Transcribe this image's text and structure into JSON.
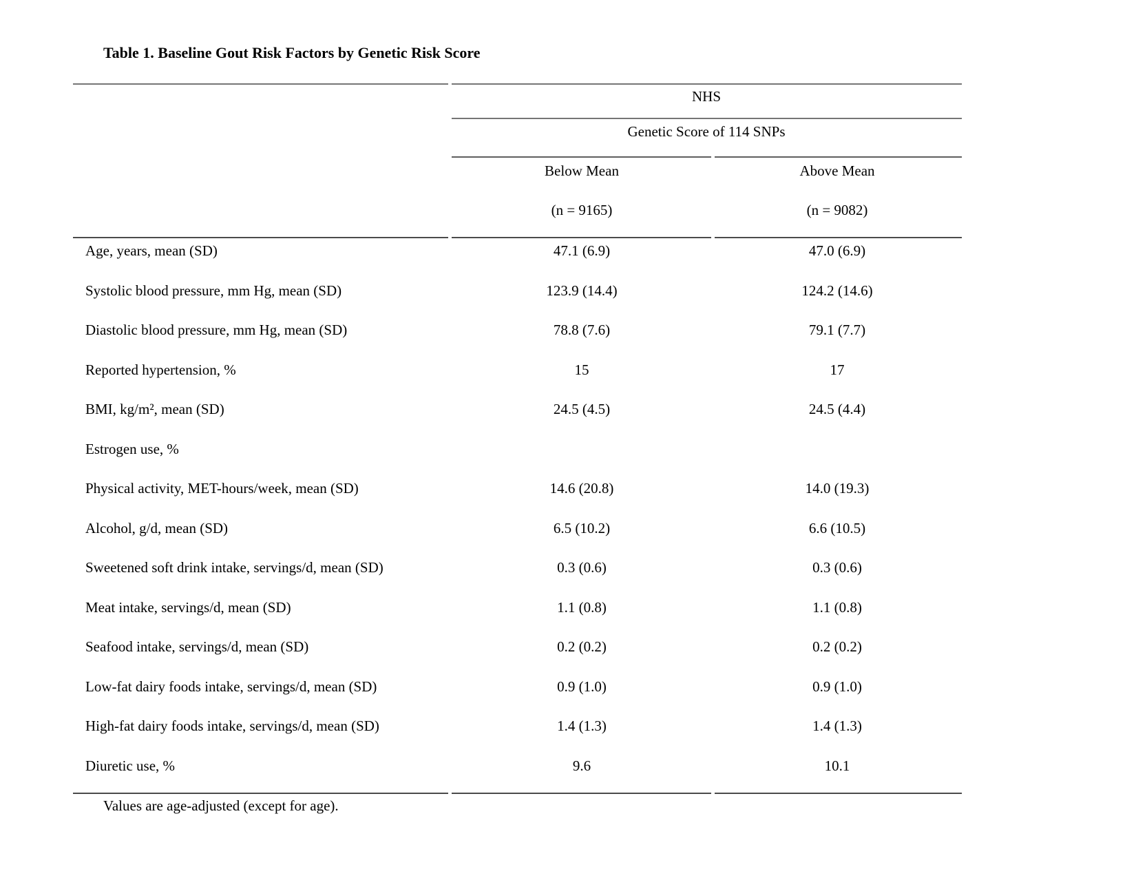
{
  "title": "Table 1. Baseline Gout Risk Factors by Genetic Risk Score",
  "table": {
    "group_header": "NHS",
    "subgroup_header": "Genetic Score of 114 SNPs",
    "columns": [
      {
        "label": "Below Mean",
        "n": "(n = 9165)"
      },
      {
        "label": "Above Mean",
        "n": "(n = 9082)"
      }
    ],
    "rows": [
      {
        "label": "Age, years, mean (SD)",
        "below_mean": "47.1 (6.9)",
        "above_mean": "47.0 (6.9)"
      },
      {
        "label": "Systolic blood pressure, mm Hg, mean (SD)",
        "below_mean": "123.9 (14.4)",
        "above_mean": "124.2 (14.6)"
      },
      {
        "label": "Diastolic blood pressure, mm Hg, mean (SD)",
        "below_mean": "78.8 (7.6)",
        "above_mean": "79.1 (7.7)"
      },
      {
        "label": "Reported hypertension, %",
        "below_mean": "15",
        "above_mean": "17"
      },
      {
        "label": "BMI, kg/m², mean (SD)",
        "below_mean": "24.5 (4.5)",
        "above_mean": "24.5 (4.4)"
      },
      {
        "label": "Estrogen use, %",
        "below_mean": "",
        "above_mean": ""
      },
      {
        "label": "Physical activity, MET-hours/week, mean (SD)",
        "below_mean": "14.6 (20.8)",
        "above_mean": "14.0 (19.3)"
      },
      {
        "label": "Alcohol, g/d, mean (SD)",
        "below_mean": "6.5 (10.2)",
        "above_mean": "6.6 (10.5)"
      },
      {
        "label": "Sweetened soft drink intake, servings/d, mean (SD)",
        "below_mean": "0.3 (0.6)",
        "above_mean": "0.3 (0.6)"
      },
      {
        "label": "Meat intake, servings/d, mean (SD)",
        "below_mean": "1.1 (0.8)",
        "above_mean": "1.1 (0.8)"
      },
      {
        "label": "Seafood intake, servings/d, mean (SD)",
        "below_mean": "0.2 (0.2)",
        "above_mean": "0.2 (0.2)"
      },
      {
        "label": "Low-fat dairy foods intake, servings/d, mean (SD)",
        "below_mean": "0.9 (1.0)",
        "above_mean": "0.9 (1.0)"
      },
      {
        "label": "High-fat dairy foods intake, servings/d, mean (SD)",
        "below_mean": "1.4 (1.3)",
        "above_mean": "1.4 (1.3)"
      },
      {
        "label": "Diuretic use, %",
        "below_mean": "9.6",
        "above_mean": "10.1"
      }
    ],
    "footnote": "Values are age-adjusted (except for age)."
  }
}
